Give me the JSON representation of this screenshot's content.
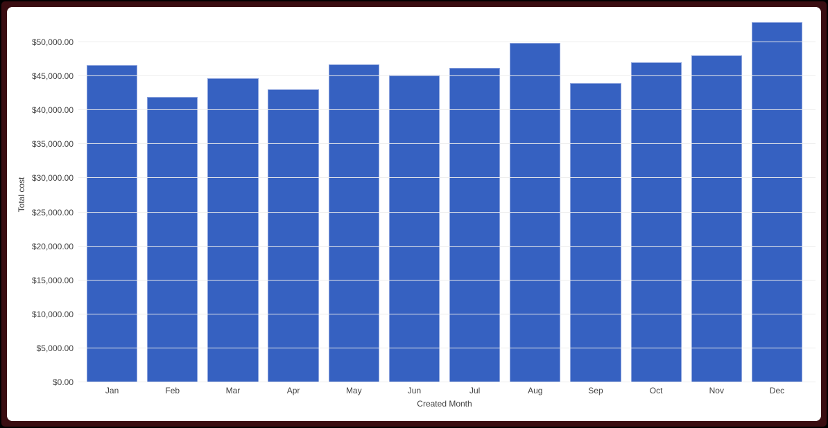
{
  "frame": {
    "outer_color": "#000000",
    "border_color": "#3a0d11",
    "card_background": "#ffffff"
  },
  "chart_data": {
    "type": "bar",
    "xlabel": "Created Month",
    "ylabel": "Total cost",
    "categories": [
      "Jan",
      "Feb",
      "Mar",
      "Apr",
      "May",
      "Jun",
      "Jul",
      "Aug",
      "Sep",
      "Oct",
      "Nov",
      "Dec"
    ],
    "values": [
      46650,
      41950,
      44700,
      43100,
      46750,
      45200,
      46250,
      49900,
      44000,
      47050,
      48100,
      52950
    ],
    "yticks": [
      0,
      5000,
      10000,
      15000,
      20000,
      25000,
      30000,
      35000,
      40000,
      45000,
      50000
    ],
    "ytick_labels": [
      "$0.00",
      "$5,000.00",
      "$10,000.00",
      "$15,000.00",
      "$20,000.00",
      "$25,000.00",
      "$30,000.00",
      "$35,000.00",
      "$40,000.00",
      "$45,000.00",
      "$50,000.00"
    ],
    "ylim": [
      0,
      55200
    ],
    "grid": true,
    "legend": "none",
    "bar_color": "#3661c1",
    "bar_border_color": "#8ca3dd",
    "grid_color": "#ececec",
    "text_color": "#424242"
  }
}
